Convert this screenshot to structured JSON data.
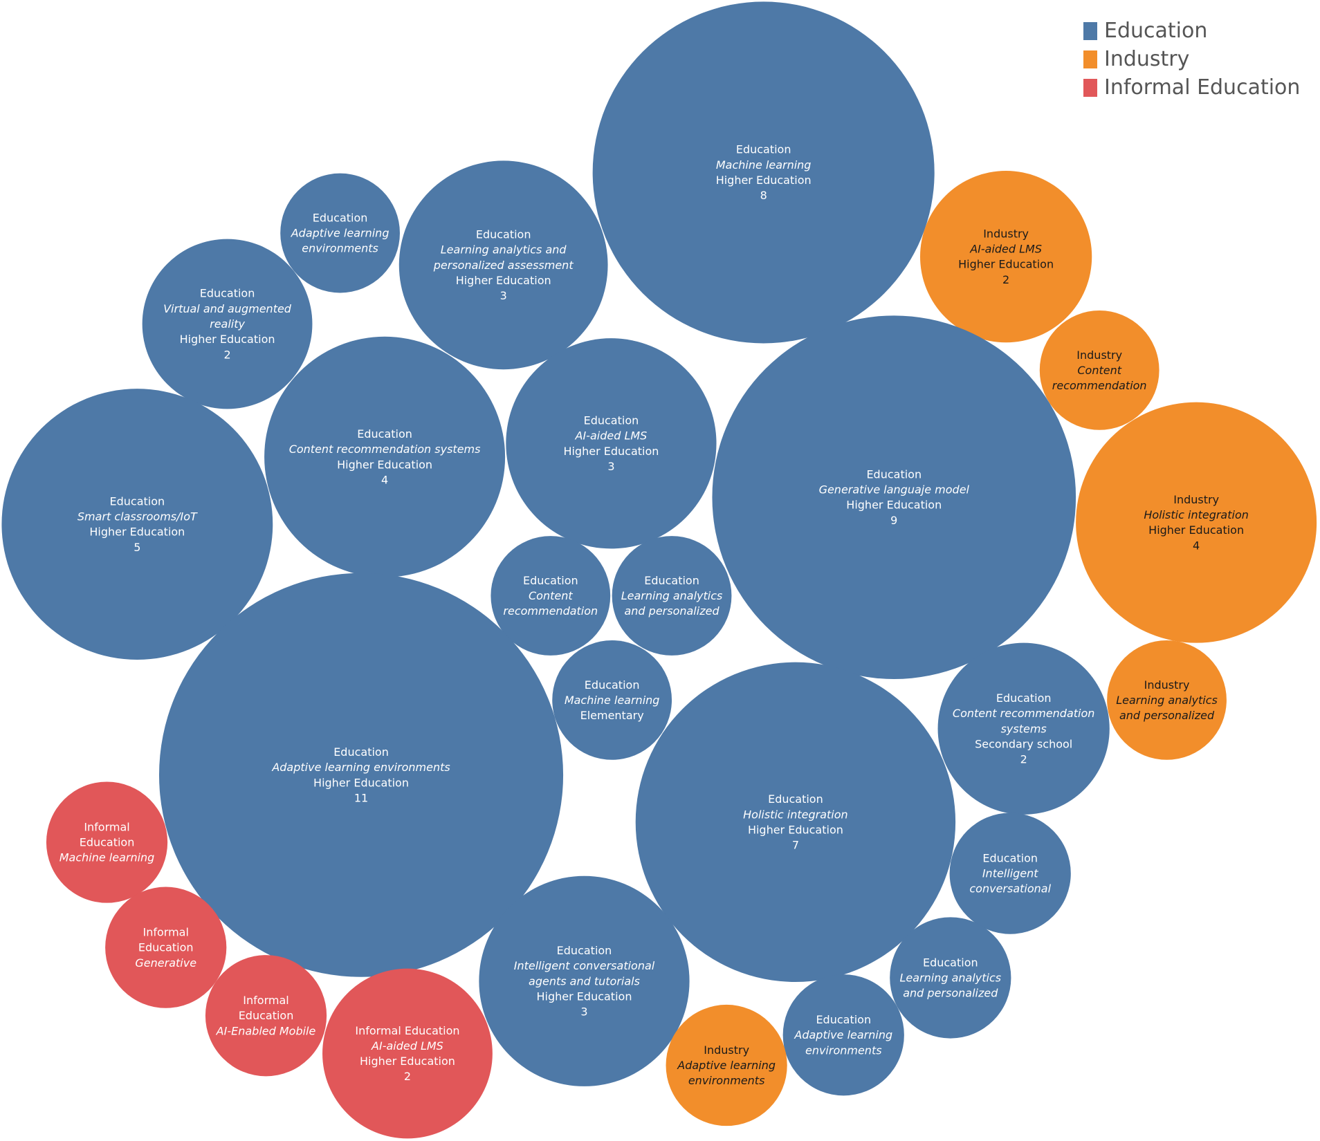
{
  "chart_data": {
    "type": "bubble",
    "colors": {
      "Education": "#4e79a7",
      "Industry": "#f28e2b",
      "Informal Education": "#e15759"
    },
    "legend": {
      "placement": "top-right",
      "entries": [
        "Education",
        "Industry",
        "Informal Education"
      ]
    },
    "bubbles": [
      {
        "category": "Education",
        "topic": "Machine learning",
        "level": "Higher Education",
        "value": "8"
      },
      {
        "category": "Education",
        "topic": "Adaptive learning environments",
        "level": "",
        "value": ""
      },
      {
        "category": "Education",
        "topic": "Learning analytics and personalized assessment",
        "level": "Higher Education",
        "value": "3"
      },
      {
        "category": "Industry",
        "topic": "AI-aided LMS",
        "level": "Higher Education",
        "value": "2"
      },
      {
        "category": "Education",
        "topic": "Virtual and augmented reality",
        "level": "Higher Education",
        "value": "2"
      },
      {
        "category": "Industry",
        "topic": "Content recommendation",
        "level": "",
        "value": ""
      },
      {
        "category": "Education",
        "topic": "Content recommendation systems",
        "level": "Higher Education",
        "value": "4"
      },
      {
        "category": "Education",
        "topic": "AI-aided LMS",
        "level": "Higher Education",
        "value": "3"
      },
      {
        "category": "Education",
        "topic": "Generative languaje model",
        "level": "Higher Education",
        "value": "9"
      },
      {
        "category": "Education",
        "topic": "Smart classrooms/IoT",
        "level": "Higher Education",
        "value": "5"
      },
      {
        "category": "Industry",
        "topic": "Holistic integration",
        "level": "Higher Education",
        "value": "4"
      },
      {
        "category": "Education",
        "topic": "Content recommendation",
        "level": "",
        "value": ""
      },
      {
        "category": "Education",
        "topic": "Learning analytics and personalized",
        "level": "",
        "value": ""
      },
      {
        "category": "Education",
        "topic": "Machine learning",
        "level": "Elementary",
        "value": ""
      },
      {
        "category": "Education",
        "topic": "Content recommendation systems",
        "level": "Secondary school",
        "value": "2"
      },
      {
        "category": "Industry",
        "topic": "Learning analytics and personalized",
        "level": "",
        "value": ""
      },
      {
        "category": "Education",
        "topic": "Adaptive learning environments",
        "level": "Higher Education",
        "value": "11"
      },
      {
        "category": "Education",
        "topic": "Holistic integration",
        "level": "Higher Education",
        "value": "7"
      },
      {
        "category": "Informal Education",
        "topic": "Machine learning",
        "level": "",
        "value": ""
      },
      {
        "category": "Education",
        "topic": "Intelligent conversational",
        "level": "",
        "value": ""
      },
      {
        "category": "Informal Education",
        "topic": "Generative",
        "level": "",
        "value": ""
      },
      {
        "category": "Education",
        "topic": "Intelligent conversational agents and tutorials",
        "level": "Higher Education",
        "value": "3"
      },
      {
        "category": "Education",
        "topic": "Learning analytics and personalized",
        "level": "",
        "value": ""
      },
      {
        "category": "Informal Education",
        "topic": "AI-Enabled Mobile",
        "level": "",
        "value": ""
      },
      {
        "category": "Education",
        "topic": "Adaptive learning environments",
        "level": "",
        "value": ""
      },
      {
        "category": "Industry",
        "topic": "Adaptive learning environments",
        "level": "",
        "value": ""
      },
      {
        "category": "Informal Education",
        "topic": "AI-aided LMS",
        "level": "Higher Education",
        "value": "2"
      }
    ]
  }
}
